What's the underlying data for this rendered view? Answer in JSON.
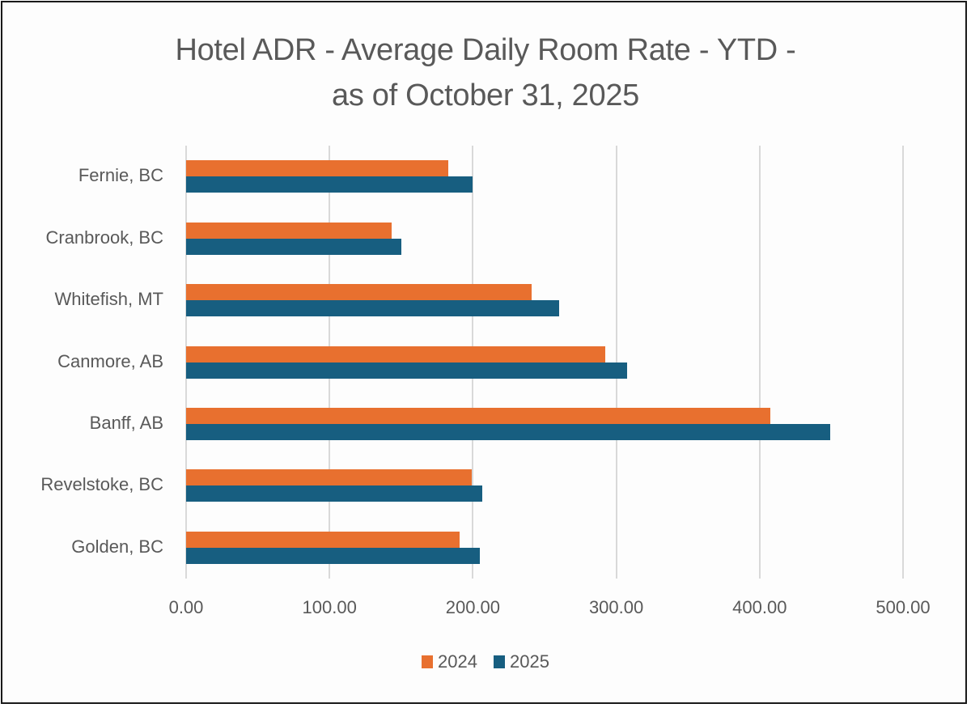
{
  "chart_data": {
    "type": "bar",
    "orientation": "horizontal",
    "title": "Hotel ADR - Average Daily Room Rate - YTD - as of October 31, 2025",
    "title_lines": [
      "Hotel ADR - Average Daily Room Rate - YTD -",
      "as of October 31, 2025"
    ],
    "xlabel": "",
    "ylabel": "",
    "categories": [
      "Fernie, BC",
      "Cranbrook, BC",
      "Whitefish, MT",
      "Canmore, AB",
      "Banff, AB",
      "Revelstoke, BC",
      "Golden, BC"
    ],
    "series": [
      {
        "name": "2024",
        "color": "#E8702F",
        "values": [
          183,
          143.5,
          241,
          292.5,
          407.5,
          199,
          190.5
        ]
      },
      {
        "name": "2025",
        "color": "#175E80",
        "values": [
          200,
          150,
          260,
          307.5,
          449,
          206.5,
          205
        ]
      }
    ],
    "xlim": [
      0,
      500
    ],
    "x_ticks": [
      "0.00",
      "100.00",
      "200.00",
      "300.00",
      "400.00",
      "500.00"
    ],
    "grid": "vertical",
    "legend_position": "bottom"
  }
}
